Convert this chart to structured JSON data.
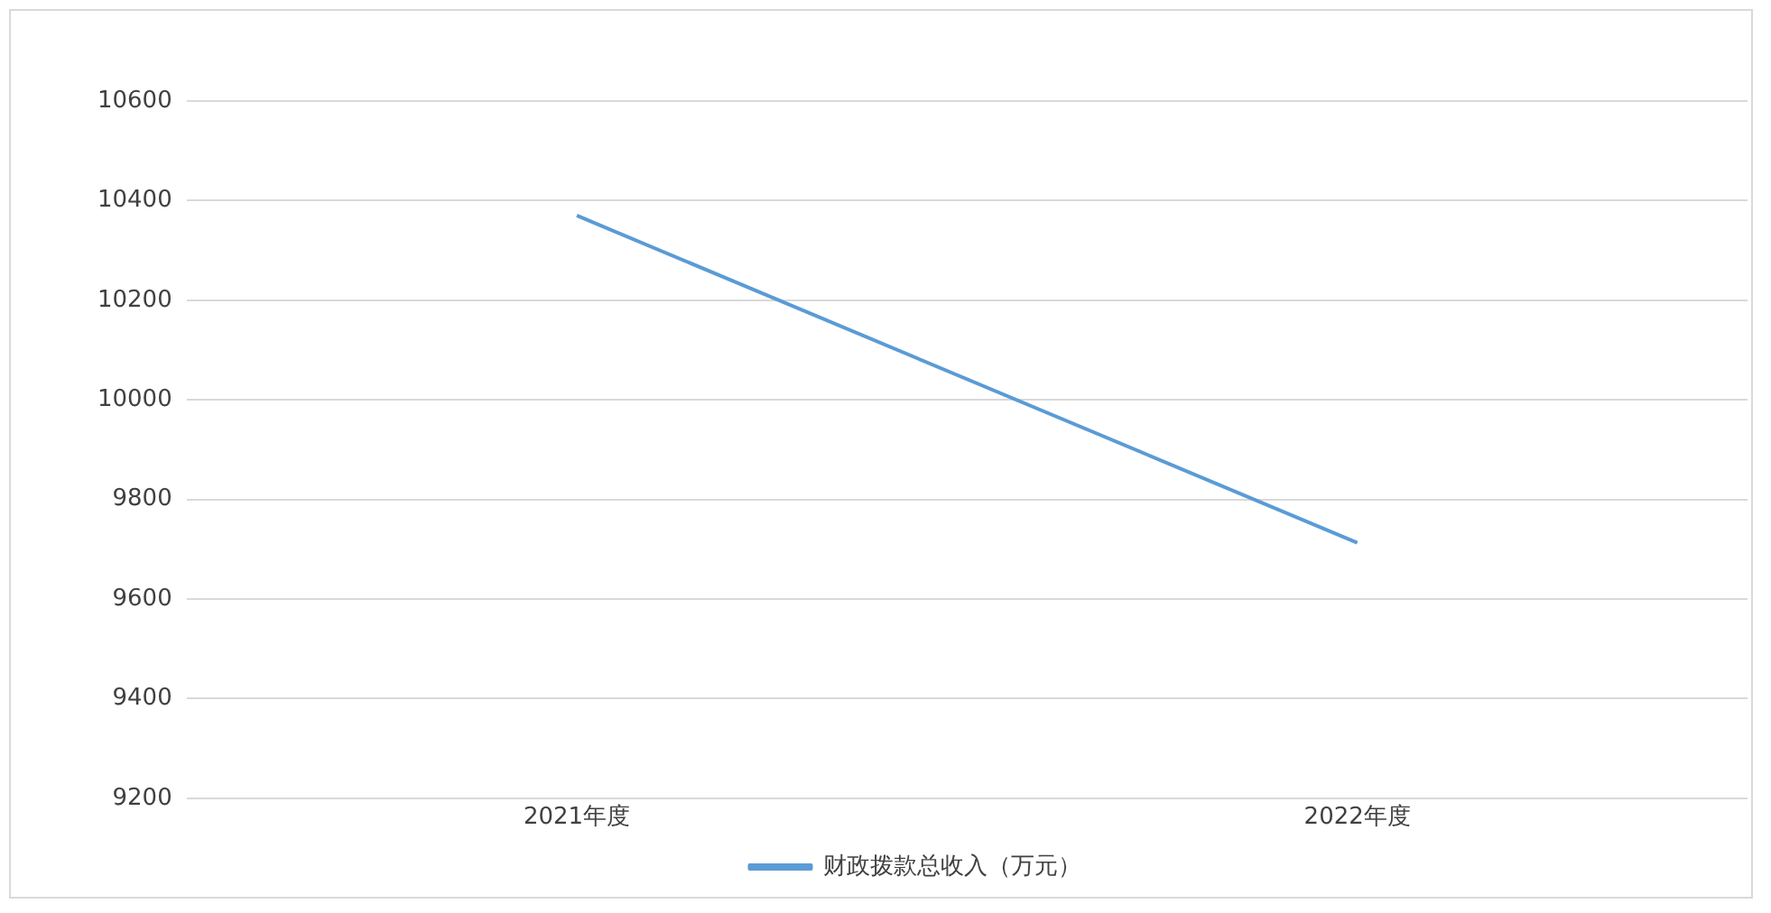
{
  "chart_data": {
    "type": "line",
    "categories": [
      "2021年度",
      "2022年度"
    ],
    "series": [
      {
        "name": "财政拨款总收入（万元）",
        "color": "#5b9bd5",
        "values": [
          10370,
          9713
        ]
      }
    ],
    "ylim": [
      9200,
      10600
    ],
    "yticks": [
      9200,
      9400,
      9600,
      9800,
      10000,
      10200,
      10400,
      10600
    ],
    "grid": "y",
    "legend": "bottom",
    "marker": "none"
  }
}
